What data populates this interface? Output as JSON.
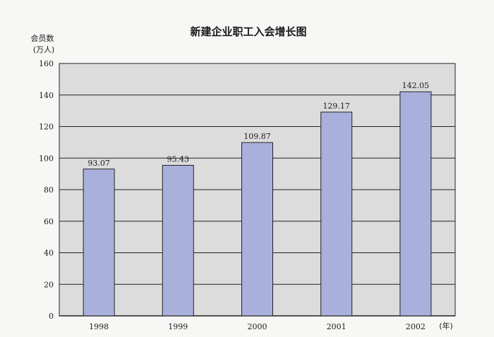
{
  "colors": {
    "background": "#f7f7f5",
    "plot_area": "#dcdcdc",
    "bar_fill": "#aab0dc",
    "bar_stroke": "#222222",
    "grid": "#222222"
  },
  "chart_data": {
    "type": "bar",
    "title": "新建企业职工入会增长图",
    "ylabel_line1": "会员数",
    "ylabel_line2": "(万人)",
    "xunit": "(年)",
    "categories": [
      "1998",
      "1999",
      "2000",
      "2001",
      "2002"
    ],
    "values": [
      93.07,
      95.43,
      109.87,
      129.17,
      142.05
    ],
    "value_labels": [
      "93.07",
      "95.43",
      "109.87",
      "129.17",
      "142.05"
    ],
    "ylim": [
      0,
      160
    ],
    "yticks": [
      0,
      20,
      40,
      60,
      80,
      100,
      120,
      140,
      160
    ],
    "grid": true
  }
}
